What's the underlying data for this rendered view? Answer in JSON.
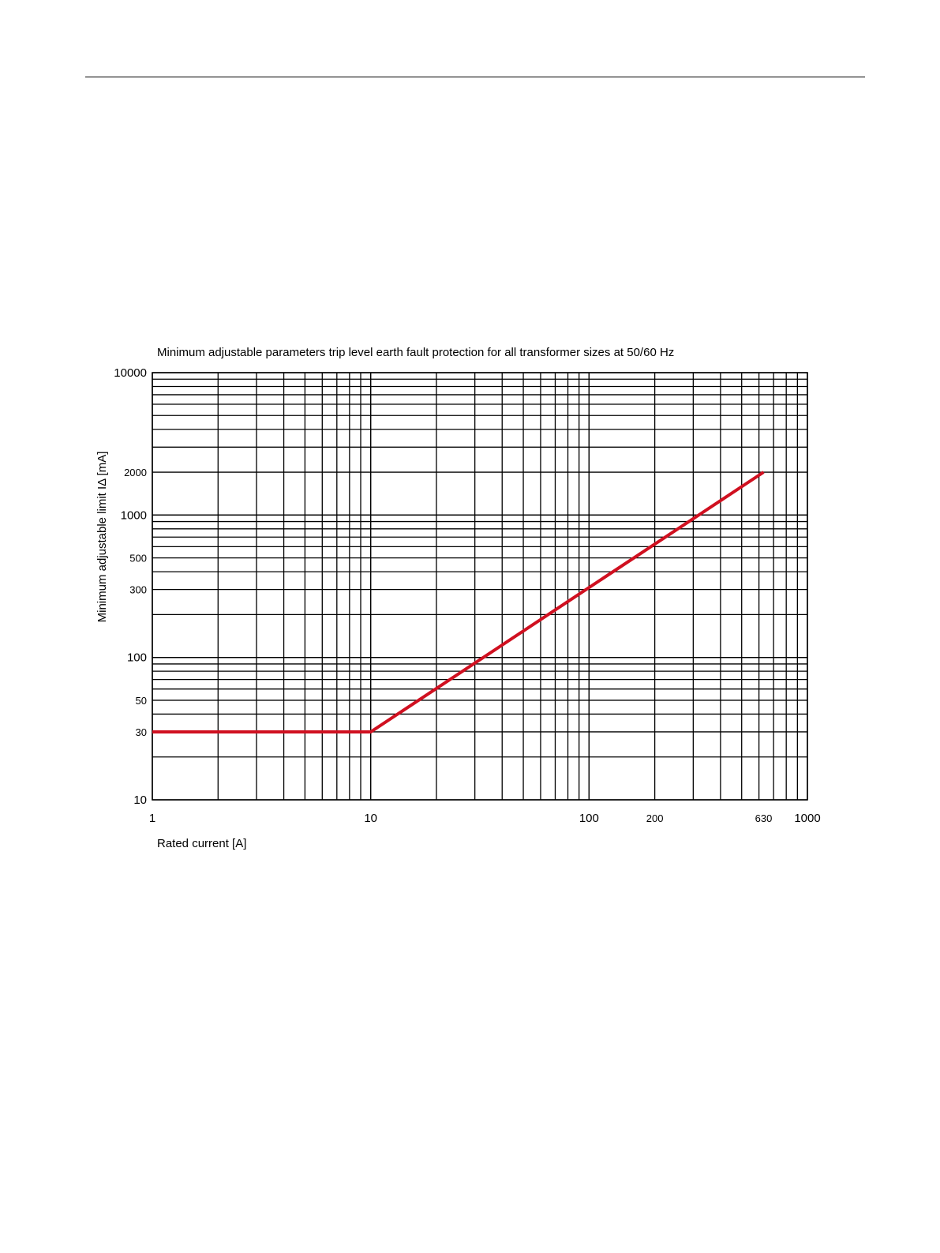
{
  "chart_data": {
    "type": "line",
    "title": "Minimum adjustable parameters trip level earth fault protection for all transformer sizes at 50/60 Hz",
    "xlabel": "Rated current [A]",
    "ylabel": "Minimum adjustable limit IΔ [mA]",
    "x_scale": "log",
    "y_scale": "log",
    "xlim": [
      1,
      1000
    ],
    "ylim": [
      10,
      10000
    ],
    "x_ticks": [
      "1",
      "10",
      "100",
      "200",
      "630",
      "1000"
    ],
    "y_ticks": [
      "10",
      "30",
      "50",
      "100",
      "300",
      "500",
      "1000",
      "2000",
      "10000"
    ],
    "grid": true,
    "line_color": "#d01020",
    "series": [
      {
        "x": [
          1,
          10,
          630
        ],
        "y": [
          30,
          30,
          2000
        ]
      }
    ]
  }
}
